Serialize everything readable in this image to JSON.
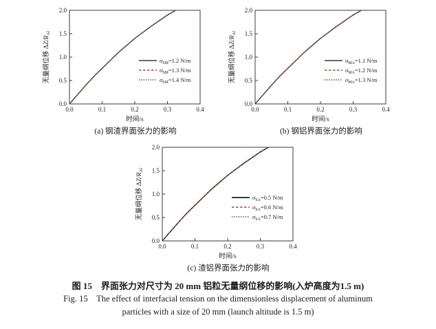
{
  "figure_caption": {
    "line1_zh": "图 15　界面张力对尺寸为 20 mm 铝粒无量纲位移的影响(入炉高度为1.5 m)",
    "line2_en": "Fig. 15　The effect of interfacial tension on the dimensionless displacement of aluminum",
    "line3_en": "particles with a size of 20 mm (launch altitude is 1.5 m)"
  },
  "chart_data": [
    {
      "panel": "a",
      "type": "line",
      "title": "(a) 钢渣界面张力的影响",
      "xlabel": "时间/s",
      "ylabel_zh": "无量纲位移 Δ",
      "ylabel_var": "Z/R",
      "ylabel_sub": "Al",
      "legend_symbol": "σ",
      "legend_position": "center-right",
      "grid": false,
      "xlim": [
        0,
        0.4
      ],
      "ylim": [
        0,
        2.0
      ],
      "xticks": [
        "0.0",
        "0.1",
        "0.2",
        "0.3",
        "0.4"
      ],
      "yticks": [
        "0.0",
        "0.5",
        "1.0",
        "1.5",
        "2.0"
      ],
      "x": [
        0,
        0.025,
        0.05,
        0.075,
        0.1,
        0.125,
        0.15,
        0.175,
        0.2,
        0.225,
        0.25,
        0.275,
        0.3,
        0.325
      ],
      "series": [
        {
          "name": "σSM=1.2 N/m",
          "sub": "SM",
          "rhs": "=1.2 N/m",
          "style": "solid",
          "color": "#555555",
          "values": [
            0,
            0.2,
            0.4,
            0.59,
            0.76,
            0.93,
            1.1,
            1.25,
            1.4,
            1.53,
            1.66,
            1.78,
            1.9,
            2.0
          ]
        },
        {
          "name": "σSM=1.3 N/m",
          "sub": "SM",
          "rhs": "=1.3 N/m",
          "style": "dashed",
          "color": "#b5423d",
          "values": [
            0,
            0.2,
            0.4,
            0.59,
            0.76,
            0.93,
            1.1,
            1.25,
            1.4,
            1.53,
            1.66,
            1.78,
            1.9,
            2.0
          ]
        },
        {
          "name": "σSM=1.4 N/m",
          "sub": "SM",
          "rhs": "=1.4 N/m",
          "style": "dotted",
          "color": "#2b2b2b",
          "values": [
            0,
            0.2,
            0.4,
            0.59,
            0.76,
            0.93,
            1.1,
            1.25,
            1.4,
            1.53,
            1.66,
            1.78,
            1.9,
            2.0
          ]
        }
      ]
    },
    {
      "panel": "b",
      "type": "line",
      "title": "(b) 钢铝界面张力的影响",
      "xlabel": "时间/s",
      "ylabel_zh": "无量纲位移 Δ",
      "ylabel_var": "Z/R",
      "ylabel_sub": "Al",
      "legend_symbol": "σ",
      "legend_position": "center-right",
      "grid": false,
      "xlim": [
        0,
        0.4
      ],
      "ylim": [
        0,
        2.0
      ],
      "xticks": [
        "0.0",
        "0.1",
        "0.2",
        "0.3",
        "0.4"
      ],
      "yticks": [
        "0.0",
        "0.5",
        "1.0",
        "1.5",
        "2.0"
      ],
      "x": [
        0,
        0.025,
        0.05,
        0.075,
        0.1,
        0.125,
        0.15,
        0.175,
        0.2,
        0.225,
        0.25,
        0.275,
        0.3,
        0.325
      ],
      "series": [
        {
          "name": "σMA=1.1 N/m",
          "sub": "MA",
          "rhs": "=1.1 N/m",
          "style": "solid",
          "color": "#555555",
          "values": [
            0,
            0.2,
            0.4,
            0.59,
            0.76,
            0.93,
            1.1,
            1.25,
            1.4,
            1.53,
            1.66,
            1.78,
            1.9,
            2.0
          ]
        },
        {
          "name": "σMA=1.2 N/m",
          "sub": "MA",
          "rhs": "=1.2 N/m",
          "style": "dashed",
          "color": "#b5423d",
          "values": [
            0,
            0.2,
            0.4,
            0.59,
            0.76,
            0.93,
            1.1,
            1.25,
            1.4,
            1.53,
            1.66,
            1.78,
            1.9,
            2.0
          ]
        },
        {
          "name": "σMA=1.3 N/m",
          "sub": "MA",
          "rhs": "=1.3 N/m",
          "style": "dotted",
          "color": "#2b2b2b",
          "values": [
            0,
            0.2,
            0.4,
            0.59,
            0.76,
            0.93,
            1.1,
            1.25,
            1.4,
            1.53,
            1.66,
            1.78,
            1.9,
            2.0
          ]
        }
      ]
    },
    {
      "panel": "c",
      "type": "line",
      "title": "(c) 渣铝界面张力的影响",
      "xlabel": "时间/s",
      "ylabel_zh": "无量纲位移 Δ",
      "ylabel_var": "Z/R",
      "ylabel_sub": "Al",
      "legend_symbol": "σ",
      "legend_position": "center-right",
      "grid": false,
      "xlim": [
        0,
        0.4
      ],
      "ylim": [
        0,
        2.0
      ],
      "xticks": [
        "0.0",
        "0.1",
        "0.2",
        "0.3",
        "0.4"
      ],
      "yticks": [
        "0.0",
        "0.5",
        "1.0",
        "1.5",
        "2.0"
      ],
      "x": [
        0,
        0.025,
        0.05,
        0.075,
        0.1,
        0.125,
        0.15,
        0.175,
        0.2,
        0.225,
        0.25,
        0.275,
        0.3,
        0.325
      ],
      "series": [
        {
          "name": "σSA=0.5 N/m",
          "sub": "SA",
          "rhs": "=0.5 N/m",
          "style": "solid",
          "color": "#1f1f1f",
          "values": [
            0,
            0.2,
            0.4,
            0.59,
            0.76,
            0.93,
            1.1,
            1.25,
            1.4,
            1.53,
            1.66,
            1.78,
            1.9,
            2.0
          ]
        },
        {
          "name": "σSA=0.6 N/m",
          "sub": "SA",
          "rhs": "=0.6 N/m",
          "style": "dashed",
          "color": "#b5423d",
          "values": [
            0,
            0.2,
            0.4,
            0.59,
            0.76,
            0.93,
            1.1,
            1.25,
            1.4,
            1.53,
            1.66,
            1.78,
            1.9,
            2.0
          ]
        },
        {
          "name": "σSA=0.7 N/m",
          "sub": "SA",
          "rhs": "=0.7 N/m",
          "style": "dotted",
          "color": "#2b2b2b",
          "values": [
            0,
            0.2,
            0.4,
            0.59,
            0.76,
            0.93,
            1.1,
            1.25,
            1.4,
            1.53,
            1.66,
            1.78,
            1.9,
            2.0
          ]
        }
      ]
    }
  ]
}
